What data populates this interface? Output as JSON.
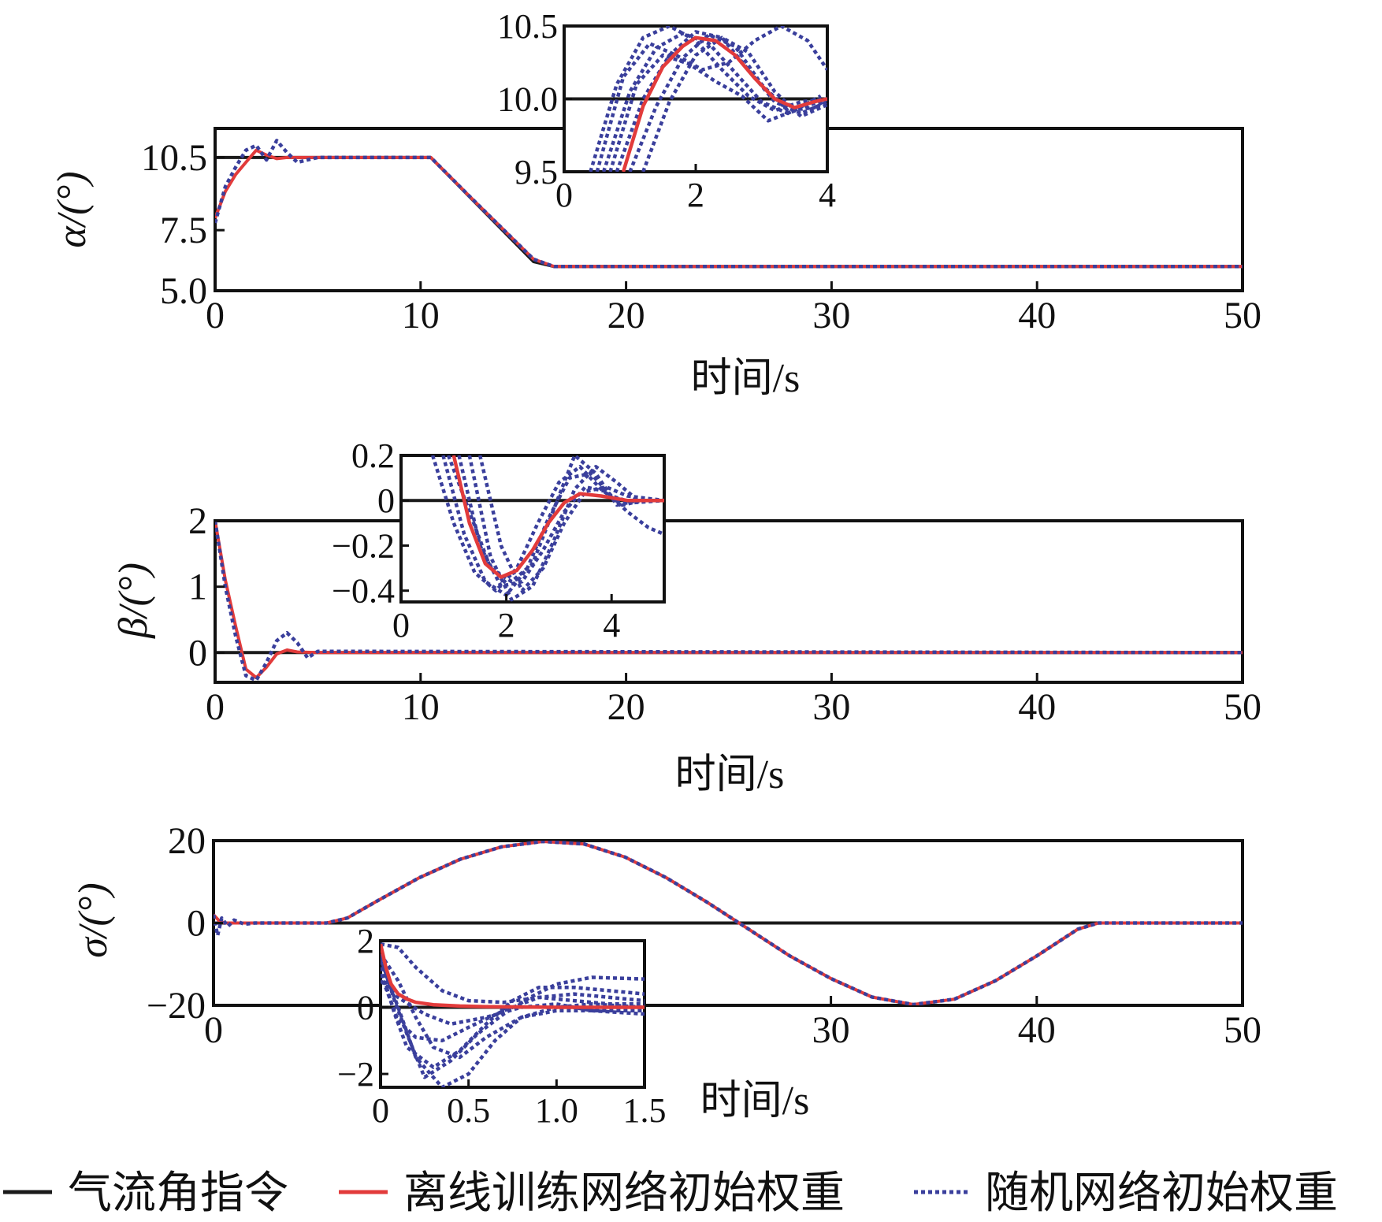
{
  "colors": {
    "command": "#1a1a1a",
    "offline": "#e23b3b",
    "random": "#3a3f9c"
  },
  "legend": {
    "command_label": "气流角指令",
    "offline_label": "离线训练网络初始权重",
    "random_label": "随机网络初始权重"
  },
  "chart_data": [
    {
      "type": "line",
      "ylabel": "α/(°)",
      "xlabel": "时间/s",
      "xlim": [
        0,
        50
      ],
      "ylim": [
        5.0,
        11.7
      ],
      "xticks": [
        "0",
        "10",
        "20",
        "30",
        "40",
        "50"
      ],
      "yticks": [
        "5.0",
        "7.5",
        "10.5"
      ],
      "ytick_values": [
        5.0,
        7.5,
        10.5
      ],
      "series": [
        {
          "name": "气流角指令",
          "x": [
            0,
            10.5,
            15.5,
            16.5,
            50
          ],
          "y": [
            10.5,
            10.5,
            6.2,
            6.0,
            6.0
          ]
        },
        {
          "name": "离线训练网络初始权重",
          "x": [
            0,
            0.5,
            1.0,
            1.5,
            2.0,
            2.5,
            3.0,
            3.5,
            4.0,
            5,
            10.5,
            12.5,
            15.5,
            16.5,
            20,
            50
          ],
          "y": [
            8.0,
            9.1,
            9.8,
            10.3,
            10.8,
            10.6,
            10.45,
            10.5,
            10.5,
            10.5,
            10.5,
            8.8,
            6.3,
            6.0,
            6.0,
            6.0
          ]
        },
        {
          "name": "随机网络初始权重",
          "x": [
            0,
            0.5,
            1.0,
            1.5,
            2.0,
            2.5,
            3.0,
            3.5,
            4.0,
            5,
            10.5,
            12.5,
            15.5,
            16.5,
            20,
            50
          ],
          "y": [
            7.8,
            9.3,
            10.1,
            10.8,
            11.0,
            10.4,
            11.2,
            10.7,
            10.3,
            10.5,
            10.5,
            8.8,
            6.3,
            6.0,
            6.0,
            6.0
          ]
        }
      ],
      "inset": {
        "xlim": [
          0,
          4
        ],
        "ylim": [
          9.5,
          10.5
        ],
        "xticks": [
          "0",
          "2",
          "4"
        ],
        "yticks": [
          "9.5",
          "10.0",
          "10.5"
        ],
        "command": {
          "x": [
            0,
            4
          ],
          "y": [
            10.0,
            10.0
          ]
        },
        "offline": {
          "x": [
            0.9,
            1.2,
            1.5,
            1.8,
            2.0,
            2.3,
            2.6,
            2.9,
            3.2,
            3.5,
            3.8,
            4.0
          ],
          "y": [
            9.5,
            9.95,
            10.22,
            10.36,
            10.42,
            10.4,
            10.3,
            10.14,
            10.0,
            9.94,
            9.98,
            10.0
          ]
        },
        "random": [
          {
            "x": [
              0.4,
              0.8,
              1.2,
              1.6,
              2.0,
              2.4,
              2.8,
              3.2,
              3.6,
              4.0
            ],
            "y": [
              9.5,
              10.1,
              10.42,
              10.5,
              10.4,
              10.2,
              10.02,
              9.92,
              9.98,
              10.0
            ]
          },
          {
            "x": [
              0.6,
              1.0,
              1.4,
              1.8,
              2.2,
              2.6,
              3.0,
              3.4,
              3.8,
              4.0
            ],
            "y": [
              9.5,
              10.05,
              10.35,
              10.45,
              10.38,
              10.18,
              9.98,
              9.9,
              9.97,
              10.0
            ]
          },
          {
            "x": [
              0.8,
              1.2,
              1.6,
              2.0,
              2.4,
              2.8,
              3.2,
              3.6,
              4.0
            ],
            "y": [
              9.5,
              10.0,
              10.3,
              10.46,
              10.42,
              10.2,
              9.98,
              9.9,
              9.98
            ]
          },
          {
            "x": [
              1.0,
              1.4,
              1.8,
              2.2,
              2.6,
              3.0,
              3.4,
              3.8,
              4.0
            ],
            "y": [
              9.5,
              9.95,
              10.28,
              10.44,
              10.36,
              10.1,
              9.92,
              9.94,
              10.0
            ]
          },
          {
            "x": [
              1.2,
              1.6,
              2.0,
              2.4,
              2.8,
              3.2,
              3.6,
              4.0
            ],
            "y": [
              9.5,
              9.98,
              10.3,
              10.42,
              10.32,
              10.05,
              9.88,
              9.96
            ]
          },
          {
            "x": [
              0.5,
              0.9,
              1.3,
              1.7,
              2.1,
              2.5,
              2.9,
              3.3,
              3.7,
              4.0
            ],
            "y": [
              9.5,
              10.15,
              10.38,
              10.3,
              10.2,
              10.25,
              10.4,
              10.5,
              10.4,
              10.2
            ]
          },
          {
            "x": [
              0.7,
              1.1,
              1.5,
              1.9,
              2.3,
              2.7,
              3.1,
              3.5,
              3.9
            ],
            "y": [
              9.5,
              10.1,
              10.3,
              10.24,
              10.12,
              10.02,
              9.85,
              9.92,
              10.02
            ]
          }
        ]
      }
    },
    {
      "type": "line",
      "ylabel": "β/(°)",
      "xlabel": "时间/s",
      "xlim": [
        0,
        50
      ],
      "ylim": [
        -0.45,
        2.0
      ],
      "xticks": [
        "0",
        "10",
        "20",
        "30",
        "40",
        "50"
      ],
      "yticks": [
        "0",
        "1",
        "2"
      ],
      "ytick_values": [
        0,
        1,
        2
      ],
      "series": [
        {
          "name": "气流角指令",
          "x": [
            0,
            50
          ],
          "y": [
            0,
            0
          ]
        },
        {
          "name": "离线训练网络初始权重",
          "x": [
            0,
            0.5,
            1.0,
            1.5,
            2.0,
            2.5,
            3.0,
            3.5,
            4.0,
            5.0,
            50
          ],
          "y": [
            2.0,
            1.1,
            0.4,
            -0.25,
            -0.38,
            -0.22,
            -0.02,
            0.04,
            0.01,
            0.0,
            0.0
          ]
        },
        {
          "name": "随机网络初始权重",
          "x": [
            0,
            0.5,
            1.0,
            1.5,
            2.0,
            2.5,
            3.0,
            3.5,
            4.0,
            4.5,
            5.0,
            50
          ],
          "y": [
            2.0,
            1.0,
            0.25,
            -0.35,
            -0.42,
            -0.15,
            0.18,
            0.3,
            0.15,
            -0.08,
            0.02,
            0.0
          ]
        }
      ],
      "inset": {
        "xlim": [
          0,
          5
        ],
        "ylim": [
          -0.45,
          0.2
        ],
        "xticks": [
          "0",
          "2",
          "4"
        ],
        "yticks": [
          "0.2",
          "0",
          "−0.2",
          "−0.4"
        ],
        "ytick_values": [
          0.2,
          0,
          -0.2,
          -0.4
        ],
        "command": {
          "x": [
            0,
            5
          ],
          "y": [
            0,
            0
          ]
        },
        "offline": {
          "x": [
            1.0,
            1.3,
            1.6,
            1.9,
            2.2,
            2.5,
            2.8,
            3.1,
            3.4,
            3.8,
            4.3,
            5.0
          ],
          "y": [
            0.2,
            -0.1,
            -0.28,
            -0.34,
            -0.31,
            -0.22,
            -0.1,
            -0.01,
            0.03,
            0.02,
            0.0,
            0.0
          ]
        },
        "random": [
          {
            "x": [
              0.6,
              1.0,
              1.4,
              1.8,
              2.2,
              2.6,
              3.0,
              3.4,
              3.8,
              4.2,
              4.6,
              5.0
            ],
            "y": [
              0.2,
              -0.1,
              -0.32,
              -0.4,
              -0.3,
              -0.1,
              0.08,
              0.15,
              0.05,
              -0.02,
              0.0,
              0.0
            ]
          },
          {
            "x": [
              0.8,
              1.2,
              1.6,
              2.0,
              2.4,
              2.8,
              3.2,
              3.6,
              4.0,
              4.4,
              5.0
            ],
            "y": [
              0.2,
              -0.15,
              -0.36,
              -0.42,
              -0.3,
              -0.08,
              0.1,
              0.12,
              0.02,
              -0.01,
              0.0
            ]
          },
          {
            "x": [
              1.1,
              1.5,
              1.9,
              2.3,
              2.7,
              3.1,
              3.5,
              3.9,
              4.3,
              4.7,
              5.0
            ],
            "y": [
              0.2,
              -0.2,
              -0.38,
              -0.36,
              -0.22,
              -0.05,
              0.06,
              0.04,
              -0.05,
              -0.12,
              -0.15
            ]
          },
          {
            "x": [
              1.3,
              1.7,
              2.1,
              2.5,
              2.9,
              3.3,
              3.7,
              4.1,
              4.5,
              5.0
            ],
            "y": [
              0.2,
              -0.25,
              -0.44,
              -0.38,
              -0.18,
              0.05,
              0.15,
              0.08,
              0.0,
              0.0
            ]
          },
          {
            "x": [
              0.9,
              1.3,
              1.7,
              2.1,
              2.5,
              2.9,
              3.3,
              3.7,
              4.1,
              4.5,
              5.0
            ],
            "y": [
              0.2,
              -0.05,
              -0.3,
              -0.36,
              -0.28,
              -0.04,
              0.2,
              0.12,
              -0.02,
              0.0,
              0.0
            ]
          },
          {
            "x": [
              1.5,
              1.9,
              2.3,
              2.7,
              3.1,
              3.5,
              3.9,
              4.3,
              5.0
            ],
            "y": [
              0.2,
              -0.2,
              -0.4,
              -0.3,
              -0.1,
              0.04,
              0.06,
              0.02,
              0.0
            ]
          }
        ]
      }
    },
    {
      "type": "line",
      "ylabel": "σ/(°)",
      "xlabel": "时间/s",
      "xlim": [
        0,
        50
      ],
      "ylim": [
        -20,
        20
      ],
      "xticks": [
        "0",
        "30",
        "40",
        "50"
      ],
      "xtick_values": [
        0,
        30,
        40,
        50
      ],
      "yticks": [
        "20",
        "0",
        "−20"
      ],
      "ytick_values": [
        20,
        0,
        -20
      ],
      "series": [
        {
          "name": "气流角指令",
          "x": [
            0,
            50
          ],
          "y": [
            0,
            0
          ]
        },
        {
          "name": "离线训练网络初始权重",
          "x": [
            0,
            0.3,
            0.6,
            1,
            5.5,
            6.5,
            8,
            10,
            12,
            14,
            16,
            18,
            20,
            22,
            24,
            26,
            28,
            30,
            32,
            34,
            36,
            38,
            40,
            42,
            43,
            50
          ],
          "y": [
            2,
            0.4,
            0,
            0,
            0,
            1.2,
            5.5,
            11,
            15.5,
            18.5,
            19.8,
            19.2,
            16,
            11,
            5,
            -1.5,
            -8,
            -13.5,
            -18,
            -19.8,
            -18.5,
            -14,
            -8,
            -1.5,
            0,
            0
          ]
        },
        {
          "name": "随机网络初始权重",
          "x": [
            0,
            0.2,
            0.4,
            0.7,
            1.0,
            1.5,
            2,
            5.5,
            6.5,
            8,
            10,
            12,
            14,
            16,
            18,
            20,
            22,
            24,
            26,
            28,
            30,
            32,
            34,
            36,
            38,
            40,
            42,
            43,
            50
          ],
          "y": [
            2,
            -3,
            1.2,
            -0.8,
            0.7,
            -0.3,
            0,
            0,
            1.2,
            5.5,
            11,
            15.5,
            18.5,
            19.8,
            19.2,
            16,
            11,
            5,
            -1.5,
            -8,
            -13.5,
            -18,
            -19.8,
            -18.5,
            -14,
            -8,
            -1.5,
            0,
            0
          ]
        }
      ],
      "inset": {
        "xlim": [
          0,
          1.5
        ],
        "ylim": [
          -2.4,
          2.0
        ],
        "xticks": [
          "0",
          "0.5",
          "1.0",
          "1.5"
        ],
        "yticks": [
          "2",
          "0",
          "−2"
        ],
        "ytick_values": [
          2,
          0,
          -2
        ],
        "command": {
          "x": [
            0,
            1.5
          ],
          "y": [
            0,
            0
          ]
        },
        "offline": {
          "x": [
            0,
            0.03,
            0.06,
            0.1,
            0.15,
            0.2,
            0.3,
            0.45,
            0.6,
            0.8,
            1.0,
            1.5
          ],
          "y": [
            1.9,
            1.2,
            0.7,
            0.4,
            0.25,
            0.15,
            0.08,
            0.04,
            0.02,
            0.01,
            0.0,
            0.0
          ]
        },
        "random": [
          {
            "x": [
              0,
              0.1,
              0.2,
              0.35,
              0.5,
              0.7,
              0.9,
              1.1,
              1.3,
              1.5
            ],
            "y": [
              1.9,
              1.8,
              1.2,
              0.5,
              0.2,
              0.15,
              0.3,
              0.2,
              0.1,
              0.1
            ]
          },
          {
            "x": [
              0,
              0.08,
              0.15,
              0.25,
              0.4,
              0.55,
              0.7,
              0.85,
              1.0,
              1.2,
              1.5
            ],
            "y": [
              1.5,
              0.2,
              -0.8,
              -2.1,
              -1.6,
              -0.8,
              -0.2,
              0.3,
              0.7,
              0.9,
              0.85
            ]
          },
          {
            "x": [
              0,
              0.08,
              0.15,
              0.3,
              0.45,
              0.6,
              0.75,
              0.9,
              1.1,
              1.3,
              1.5
            ],
            "y": [
              1.2,
              -0.2,
              -1.2,
              -1.8,
              -1.3,
              -0.5,
              0.2,
              0.6,
              0.6,
              0.5,
              0.4
            ]
          },
          {
            "x": [
              0,
              0.1,
              0.2,
              0.35,
              0.5,
              0.7,
              0.9,
              1.1,
              1.3,
              1.5
            ],
            "y": [
              1.0,
              -0.4,
              -0.9,
              -1.0,
              -0.6,
              -0.1,
              0.3,
              0.4,
              0.3,
              0.2
            ]
          },
          {
            "x": [
              0,
              0.1,
              0.2,
              0.35,
              0.5,
              0.65,
              0.8,
              1.0,
              1.2,
              1.5
            ],
            "y": [
              1.4,
              0.0,
              -1.5,
              -2.4,
              -2.0,
              -1.0,
              -0.3,
              0.0,
              0.1,
              0.0
            ]
          },
          {
            "x": [
              0,
              0.1,
              0.25,
              0.4,
              0.6,
              0.8,
              1.0,
              1.2,
              1.5
            ],
            "y": [
              0.8,
              0.3,
              -0.2,
              -0.5,
              -0.3,
              0.0,
              0.1,
              -0.1,
              -0.2
            ]
          },
          {
            "x": [
              0,
              0.1,
              0.2,
              0.3,
              0.45,
              0.6,
              0.8,
              1.0,
              1.5
            ],
            "y": [
              1.6,
              0.8,
              -0.3,
              -1.2,
              -1.5,
              -0.9,
              -0.3,
              -0.1,
              -0.1
            ]
          }
        ]
      }
    }
  ]
}
